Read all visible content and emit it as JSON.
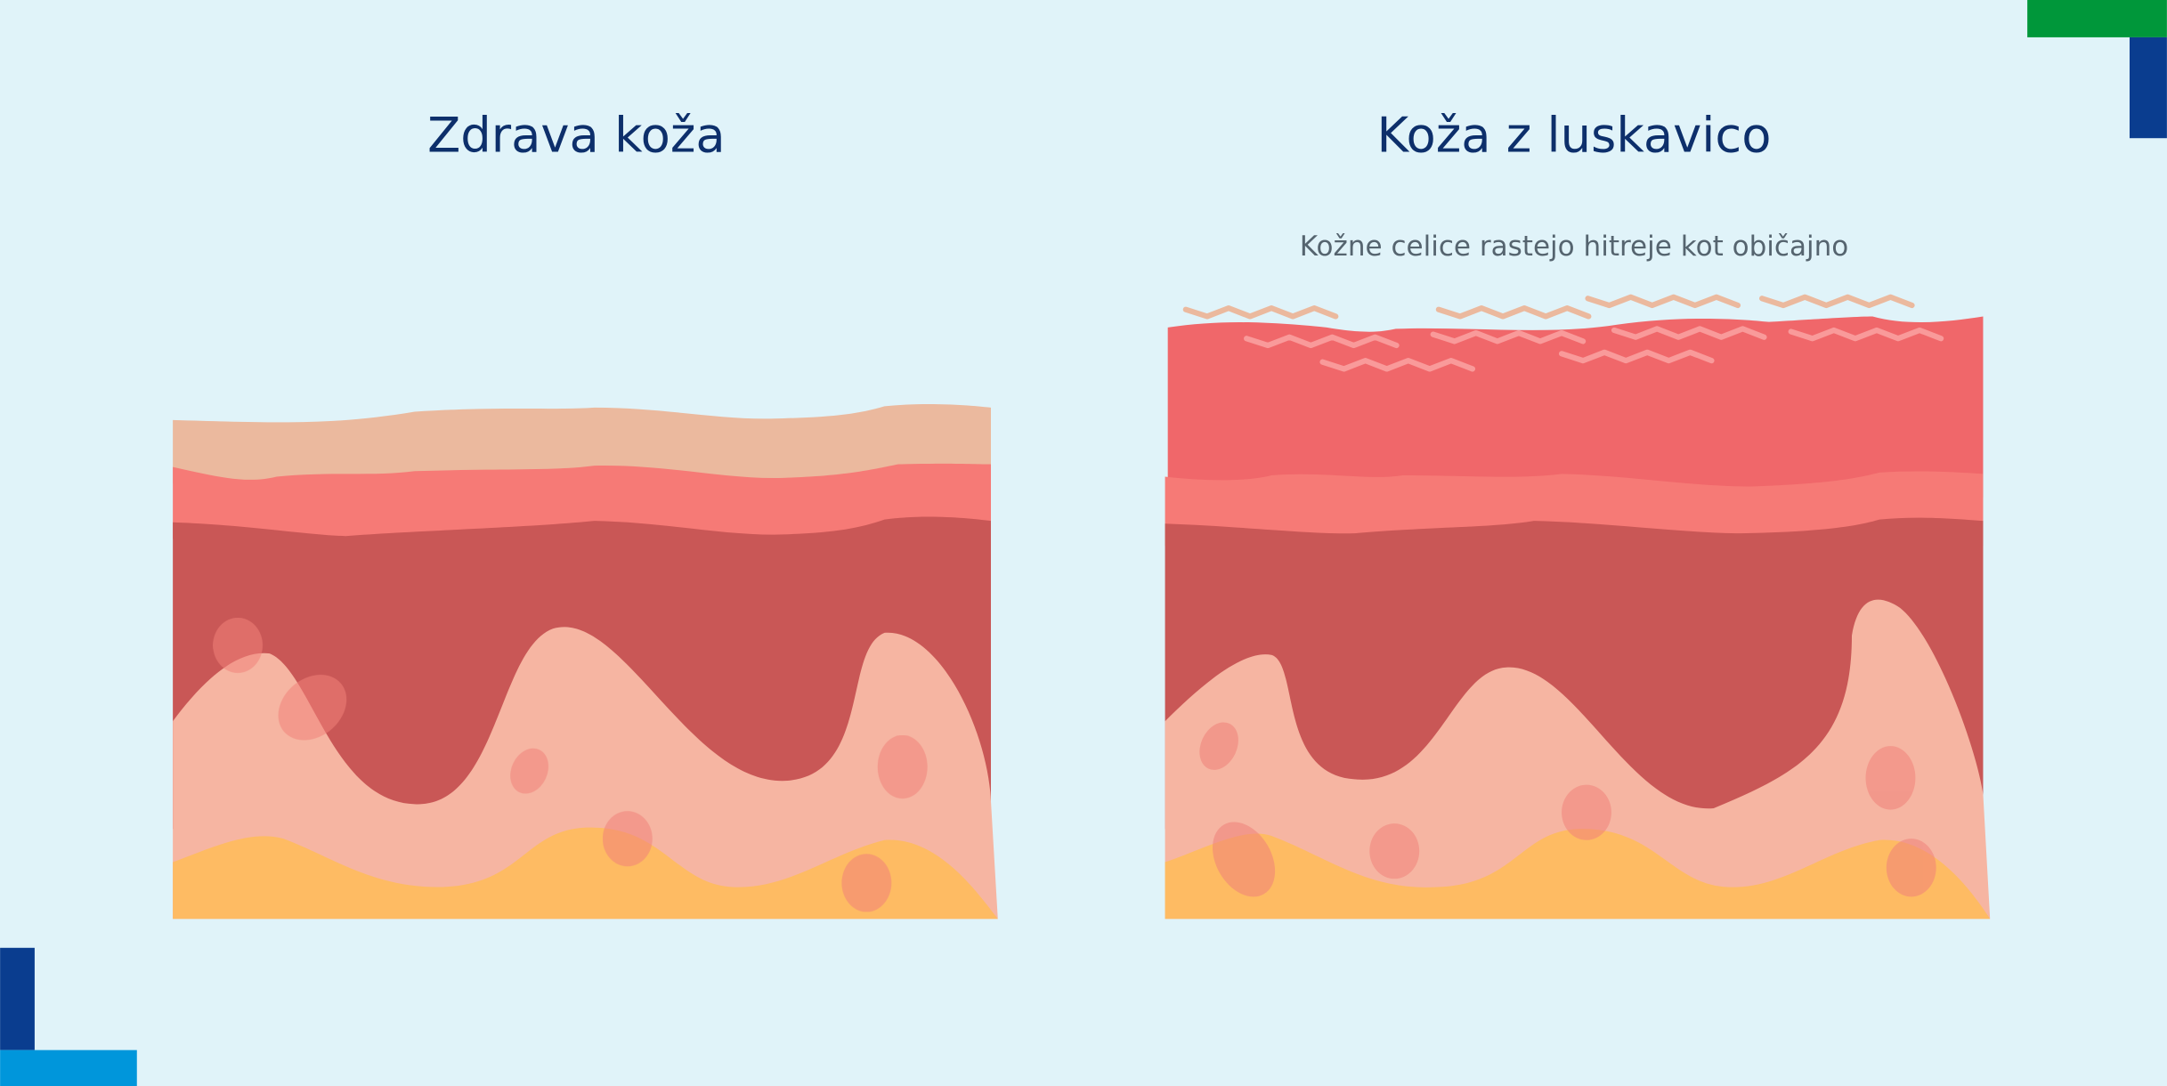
{
  "left_panel": {
    "title": "Zdrava koža"
  },
  "right_panel": {
    "title": "Koža z luskavico",
    "subtitle": "Kožne celice rastejo hitreje kot običajno"
  },
  "colors": {
    "background": "#E0F3F9",
    "outer_layer": "#EBB99E",
    "psoriasis_plaque": "#F0676A",
    "epidermis": "#F67A76",
    "dermis": "#C95756",
    "deep_dermis": "#F6B5A2",
    "fat": "#FEBB63",
    "scales_outer": "#EBB99E",
    "scales_inner": "#F99A9A",
    "corner_green": "#00973A",
    "corner_blue_dark": "#0A3D8F",
    "corner_blue_light": "#0096DB"
  }
}
